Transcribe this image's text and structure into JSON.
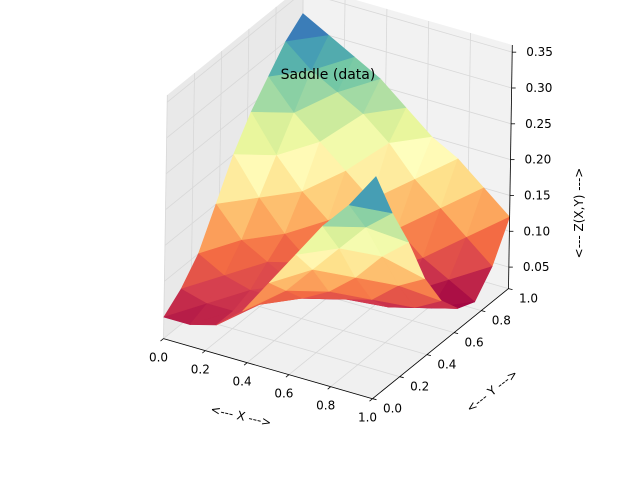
{
  "chart_data": {
    "type": "surface3d",
    "title": "Saddle (data)",
    "xlabel": "<--- X --->",
    "ylabel": "<--- Y --->",
    "zlabel": "<--- Z(X,Y) --->",
    "xlim": [
      0,
      1
    ],
    "ylim": [
      0,
      1
    ],
    "zlim": [
      0.02,
      0.36
    ],
    "x_ticks": [
      "0.0",
      "0.2",
      "0.4",
      "0.6",
      "0.8",
      "1.0"
    ],
    "y_ticks": [
      "0.0",
      "0.2",
      "0.4",
      "0.6",
      "0.8",
      "1.0"
    ],
    "z_ticks": [
      "0.05",
      "0.10",
      "0.15",
      "0.20",
      "0.25",
      "0.30",
      "0.35"
    ],
    "colormap": "Spectral",
    "grid": true,
    "x": [
      0.0,
      0.125,
      0.25,
      0.375,
      0.5,
      0.625,
      0.75,
      0.875,
      1.0
    ],
    "y": [
      0.0,
      0.125,
      0.25,
      0.375,
      0.5,
      0.625,
      0.75,
      0.875,
      1.0
    ],
    "z": [
      [
        0.05,
        0.07,
        0.1,
        0.15,
        0.2,
        0.24,
        0.27,
        0.3,
        0.32
      ],
      [
        0.05,
        0.06,
        0.08,
        0.11,
        0.15,
        0.19,
        0.23,
        0.27,
        0.3
      ],
      [
        0.06,
        0.06,
        0.07,
        0.09,
        0.11,
        0.15,
        0.2,
        0.25,
        0.28
      ],
      [
        0.09,
        0.08,
        0.07,
        0.07,
        0.08,
        0.12,
        0.17,
        0.23,
        0.26
      ],
      [
        0.14,
        0.11,
        0.08,
        0.06,
        0.06,
        0.09,
        0.14,
        0.2,
        0.23
      ],
      [
        0.19,
        0.15,
        0.1,
        0.07,
        0.05,
        0.07,
        0.11,
        0.16,
        0.2
      ],
      [
        0.24,
        0.19,
        0.13,
        0.08,
        0.05,
        0.05,
        0.08,
        0.13,
        0.18
      ],
      [
        0.28,
        0.23,
        0.17,
        0.11,
        0.06,
        0.04,
        0.06,
        0.1,
        0.15
      ],
      [
        0.33,
        0.26,
        0.2,
        0.13,
        0.08,
        0.05,
        0.04,
        0.07,
        0.12
      ]
    ]
  }
}
